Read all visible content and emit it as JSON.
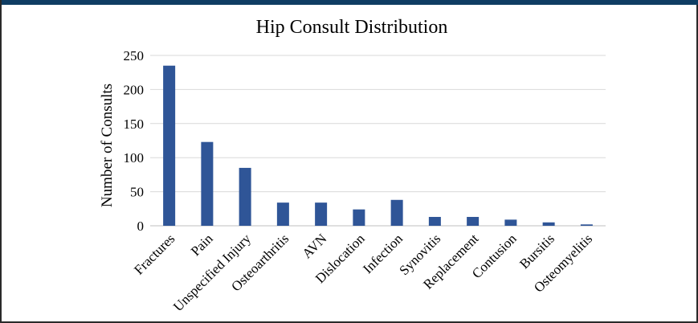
{
  "chart_data": {
    "type": "bar",
    "title": "Hip Consult Distribution",
    "xlabel": "",
    "ylabel": "Number of Consults",
    "ylim": [
      0,
      250
    ],
    "yticks": [
      0,
      50,
      100,
      150,
      200,
      250
    ],
    "grid": true,
    "categories": [
      "Fractures",
      "Pain",
      "Unspecified Injury",
      "Osteoarthritis",
      "AVN",
      "Dislocation",
      "Infection",
      "Synovitis",
      "Replacement",
      "Contusion",
      "Bursitis",
      "Osteomyelitis"
    ],
    "values": [
      235,
      123,
      85,
      34,
      34,
      24,
      38,
      13,
      13,
      9,
      5,
      2
    ],
    "bar_color": "#2f5597"
  }
}
